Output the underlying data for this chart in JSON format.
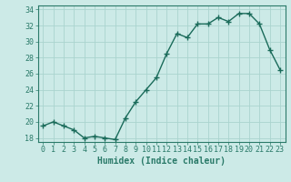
{
  "x": [
    0,
    1,
    2,
    3,
    4,
    5,
    6,
    7,
    8,
    9,
    10,
    11,
    12,
    13,
    14,
    15,
    16,
    17,
    18,
    19,
    20,
    21,
    22,
    23
  ],
  "y": [
    19.5,
    20.0,
    19.5,
    19.0,
    18.0,
    18.2,
    18.0,
    17.8,
    20.5,
    22.5,
    24.0,
    25.5,
    28.5,
    31.0,
    30.5,
    32.2,
    32.2,
    33.0,
    32.5,
    33.5,
    33.5,
    32.2,
    29.0,
    26.5
  ],
  "xlabel": "Humidex (Indice chaleur)",
  "bg_color": "#cceae7",
  "line_color": "#1a6b5a",
  "marker_color": "#1a6b5a",
  "grid_color": "#aad4cf",
  "ylim": [
    17.5,
    34.5
  ],
  "xlim": [
    -0.5,
    23.5
  ],
  "yticks": [
    18,
    20,
    22,
    24,
    26,
    28,
    30,
    32,
    34
  ],
  "xticks": [
    0,
    1,
    2,
    3,
    4,
    5,
    6,
    7,
    8,
    9,
    10,
    11,
    12,
    13,
    14,
    15,
    16,
    17,
    18,
    19,
    20,
    21,
    22,
    23
  ],
  "xlabel_fontsize": 7,
  "tick_fontsize": 6,
  "line_width": 1.0,
  "marker_size": 4
}
